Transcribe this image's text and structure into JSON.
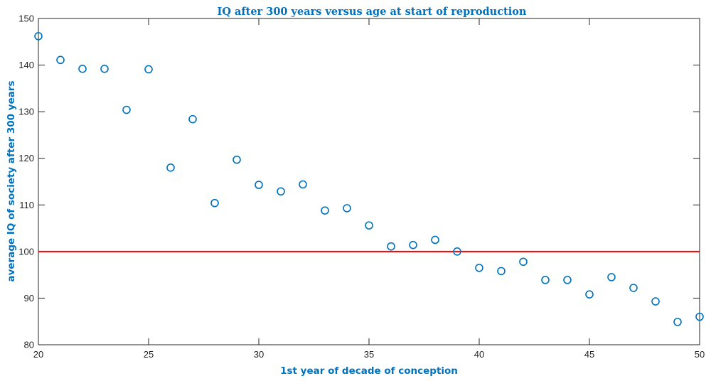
{
  "chart_data": {
    "type": "scatter",
    "title": "IQ after 300 years versus age at start of reproduction",
    "xlabel": "1st year of decade of conception",
    "ylabel": "average IQ of society after 300 years",
    "xlim": [
      20,
      50
    ],
    "ylim": [
      80,
      150
    ],
    "xticks": [
      20,
      25,
      30,
      35,
      40,
      45,
      50
    ],
    "yticks": [
      80,
      90,
      100,
      110,
      120,
      130,
      140,
      150
    ],
    "grid": false,
    "legend": "none",
    "marker_color": "#0072bd",
    "reference_line": {
      "y": 100,
      "color": "#ff0000"
    },
    "series": [
      {
        "x": [
          20,
          21,
          22,
          23,
          24,
          25,
          26,
          27,
          28,
          29,
          30,
          31,
          32,
          33,
          34,
          35,
          36,
          37,
          38,
          39,
          40,
          41,
          42,
          43,
          44,
          45,
          46,
          47,
          48,
          49,
          50
        ],
        "y": [
          146.2,
          141.1,
          139.2,
          139.2,
          130.4,
          139.1,
          118.0,
          128.4,
          110.4,
          119.7,
          114.3,
          112.9,
          114.4,
          108.8,
          109.3,
          105.6,
          101.1,
          101.4,
          102.5,
          100.0,
          96.5,
          95.8,
          97.8,
          93.9,
          93.9,
          90.8,
          94.5,
          92.2,
          89.3,
          84.9,
          86.0
        ]
      }
    ]
  }
}
